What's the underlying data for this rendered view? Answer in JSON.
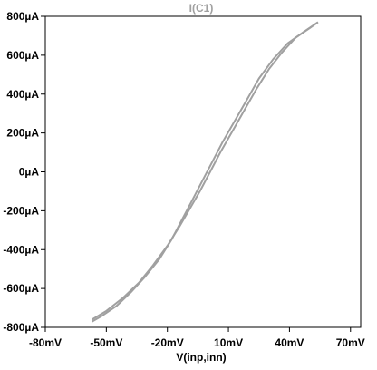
{
  "chart_data": {
    "type": "line",
    "title": "I(C1)",
    "xlabel": "V(inp,inn)",
    "ylabel": "",
    "xlim": [
      -80,
      75
    ],
    "ylim": [
      -800,
      800
    ],
    "x_ticks": [
      -80,
      -50,
      -20,
      10,
      40,
      70
    ],
    "x_tick_labels": [
      "-80mV",
      "-50mV",
      "-20mV",
      "10mV",
      "40mV",
      "70mV"
    ],
    "y_ticks": [
      -800,
      -600,
      -400,
      -200,
      0,
      200,
      400,
      600,
      800
    ],
    "y_tick_labels": [
      "-800µA",
      "-600µA",
      "-400µA",
      "-200µA",
      "0µA",
      "200µA",
      "400µA",
      "600µA",
      "800µA"
    ],
    "grid": false,
    "series": [
      {
        "color": "#a0a0a0",
        "x": [
          -57.0,
          -50.0,
          -42.0,
          -34.0,
          -27.0,
          -20.0,
          -14.0,
          -9.0,
          -4.0,
          1.0,
          6.0,
          12.0,
          18.0,
          24.0,
          30.0,
          36.0,
          43.0,
          50.0,
          54.0
        ],
        "y": [
          -760,
          -715,
          -650,
          -570,
          -480,
          -380,
          -280,
          -190,
          -100,
          0,
          100,
          210,
          320,
          430,
          530,
          610,
          690,
          740,
          770
        ]
      },
      {
        "color": "#a0a0a0",
        "x": [
          -57.0,
          -52.0,
          -45.0,
          -38.0,
          -31.0,
          -24.0,
          -18.0,
          -13.0,
          -8.0,
          -3.0,
          2.0,
          7.0,
          13.0,
          19.0,
          25.0,
          32.0,
          39.0,
          47.0,
          54.0
        ],
        "y": [
          -770,
          -740,
          -690,
          -620,
          -540,
          -450,
          -350,
          -250,
          -150,
          -50,
          50,
          150,
          260,
          370,
          480,
          580,
          660,
          720,
          770
        ]
      }
    ]
  }
}
